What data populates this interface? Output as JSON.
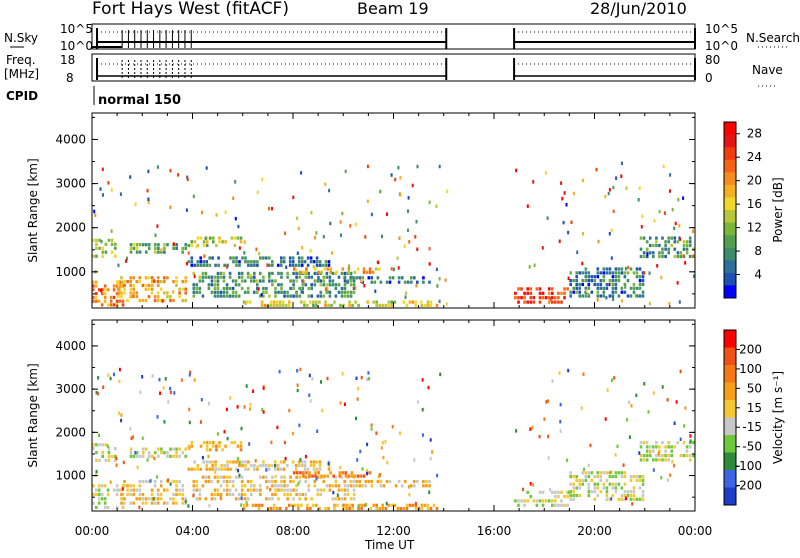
{
  "header": {
    "station": "Fort Hays West (fitACF)",
    "beam": "Beam 19",
    "date": "28/Jun/2010"
  },
  "panels": {
    "nsky_label": "N.Sky",
    "nsky_ticks": [
      "10^5",
      "10^0"
    ],
    "nsearch_label": "N.Search",
    "freq_label_1": "Freq.",
    "freq_label_2": "[MHz]",
    "freq_ticks": [
      "18",
      "8"
    ],
    "nave_label": "Nave",
    "nave_ticks": [
      "80",
      "0"
    ],
    "cpid_label": "CPID",
    "cpid_value": "normal 150"
  },
  "chart_data": [
    {
      "type": "heatmap",
      "name": "power",
      "xlabel": "Time UT",
      "ylabel": "Slant Range [km]",
      "x_ticks": [
        "00:00",
        "04:00",
        "08:00",
        "12:00",
        "16:00",
        "20:00",
        "00:00"
      ],
      "y_ticks": [
        "1000",
        "2000",
        "3000",
        "4000"
      ],
      "xlim": [
        0,
        24
      ],
      "ylim": [
        180,
        4600
      ],
      "colorbar": {
        "label": "Power [dB]",
        "ticks": [
          "4",
          "8",
          "12",
          "16",
          "20",
          "24",
          "28"
        ],
        "range": [
          0,
          30
        ],
        "colors": [
          "#0000ff",
          "#1e50b4",
          "#2d6e9a",
          "#3d8c6e",
          "#53a04a",
          "#7ab63a",
          "#b6c83a",
          "#f0d828",
          "#f5b01e",
          "#f58c1e",
          "#f56414",
          "#f03c0a",
          "#e61414",
          "#ff0000"
        ]
      },
      "data_gap_hours": [
        14.1,
        16.8
      ],
      "regions": [
        {
          "t": [
            0.0,
            1.3
          ],
          "r": [
            200,
            800
          ],
          "level": 21
        },
        {
          "t": [
            0.0,
            1.0
          ],
          "r": [
            1300,
            1750
          ],
          "level": 12
        },
        {
          "t": [
            1.0,
            3.8
          ],
          "r": [
            300,
            900
          ],
          "level": 18
        },
        {
          "t": [
            1.5,
            3.8
          ],
          "r": [
            1400,
            1650
          ],
          "level": 10
        },
        {
          "t": [
            3.8,
            9.5
          ],
          "r": [
            1100,
            1350
          ],
          "level": 5
        },
        {
          "t": [
            3.8,
            6.0
          ],
          "r": [
            1550,
            1800
          ],
          "level": 14
        },
        {
          "t": [
            4.0,
            10.5
          ],
          "r": [
            400,
            1000
          ],
          "level": 8
        },
        {
          "t": [
            6.0,
            13.8
          ],
          "r": [
            200,
            350
          ],
          "level": 15
        },
        {
          "t": [
            8.0,
            11.5
          ],
          "r": [
            950,
            1100
          ],
          "level": 18
        },
        {
          "t": [
            10.0,
            13.5
          ],
          "r": [
            700,
            900
          ],
          "level": 6
        },
        {
          "t": [
            16.8,
            19.0
          ],
          "r": [
            250,
            650
          ],
          "level": 25
        },
        {
          "t": [
            19.0,
            22.0
          ],
          "r": [
            400,
            1100
          ],
          "level": 6
        },
        {
          "t": [
            21.8,
            24.0
          ],
          "r": [
            1300,
            1800
          ],
          "level": 8
        }
      ]
    },
    {
      "type": "heatmap",
      "name": "velocity",
      "xlabel": "Time UT",
      "ylabel": "Slant Range [km]",
      "x_ticks": [
        "00:00",
        "04:00",
        "08:00",
        "12:00",
        "16:00",
        "20:00",
        "00:00"
      ],
      "y_ticks": [
        "1000",
        "2000",
        "3000",
        "4000"
      ],
      "xlim": [
        0,
        24
      ],
      "ylim": [
        180,
        4600
      ],
      "colorbar": {
        "label": "Velocity [m s⁻¹]",
        "ticks": [
          "200",
          "100",
          "50",
          "15",
          "-15",
          "-50",
          "-100",
          "-200"
        ],
        "colors": [
          "#1e3cc8",
          "#3c64e6",
          "#2e8b3a",
          "#6ec83c",
          "#c8c8c8",
          "#f5c832",
          "#f5a014",
          "#f57814",
          "#f05014",
          "#ff0000"
        ]
      },
      "data_gap_hours": [
        14.1,
        16.8
      ],
      "regions": [
        {
          "t": [
            0.0,
            1.3
          ],
          "r": [
            200,
            800
          ],
          "level": 4
        },
        {
          "t": [
            0.0,
            1.0
          ],
          "r": [
            1300,
            1750
          ],
          "level": 4
        },
        {
          "t": [
            1.0,
            3.8
          ],
          "r": [
            300,
            900
          ],
          "level": 5
        },
        {
          "t": [
            1.5,
            3.8
          ],
          "r": [
            1400,
            1650
          ],
          "level": 4
        },
        {
          "t": [
            3.8,
            9.5
          ],
          "r": [
            1100,
            1350
          ],
          "level": 5
        },
        {
          "t": [
            3.8,
            6.0
          ],
          "r": [
            1550,
            1800
          ],
          "level": 6
        },
        {
          "t": [
            4.0,
            10.5
          ],
          "r": [
            400,
            1000
          ],
          "level": 5
        },
        {
          "t": [
            6.0,
            13.8
          ],
          "r": [
            200,
            350
          ],
          "level": 6
        },
        {
          "t": [
            8.0,
            11.5
          ],
          "r": [
            950,
            1100
          ],
          "level": 7
        },
        {
          "t": [
            10.0,
            13.5
          ],
          "r": [
            700,
            900
          ],
          "level": 5
        },
        {
          "t": [
            16.8,
            19.0
          ],
          "r": [
            250,
            650
          ],
          "level": 4
        },
        {
          "t": [
            19.0,
            22.0
          ],
          "r": [
            400,
            1100
          ],
          "level": 4
        },
        {
          "t": [
            21.8,
            24.0
          ],
          "r": [
            1300,
            1800
          ],
          "level": 4
        }
      ]
    }
  ]
}
